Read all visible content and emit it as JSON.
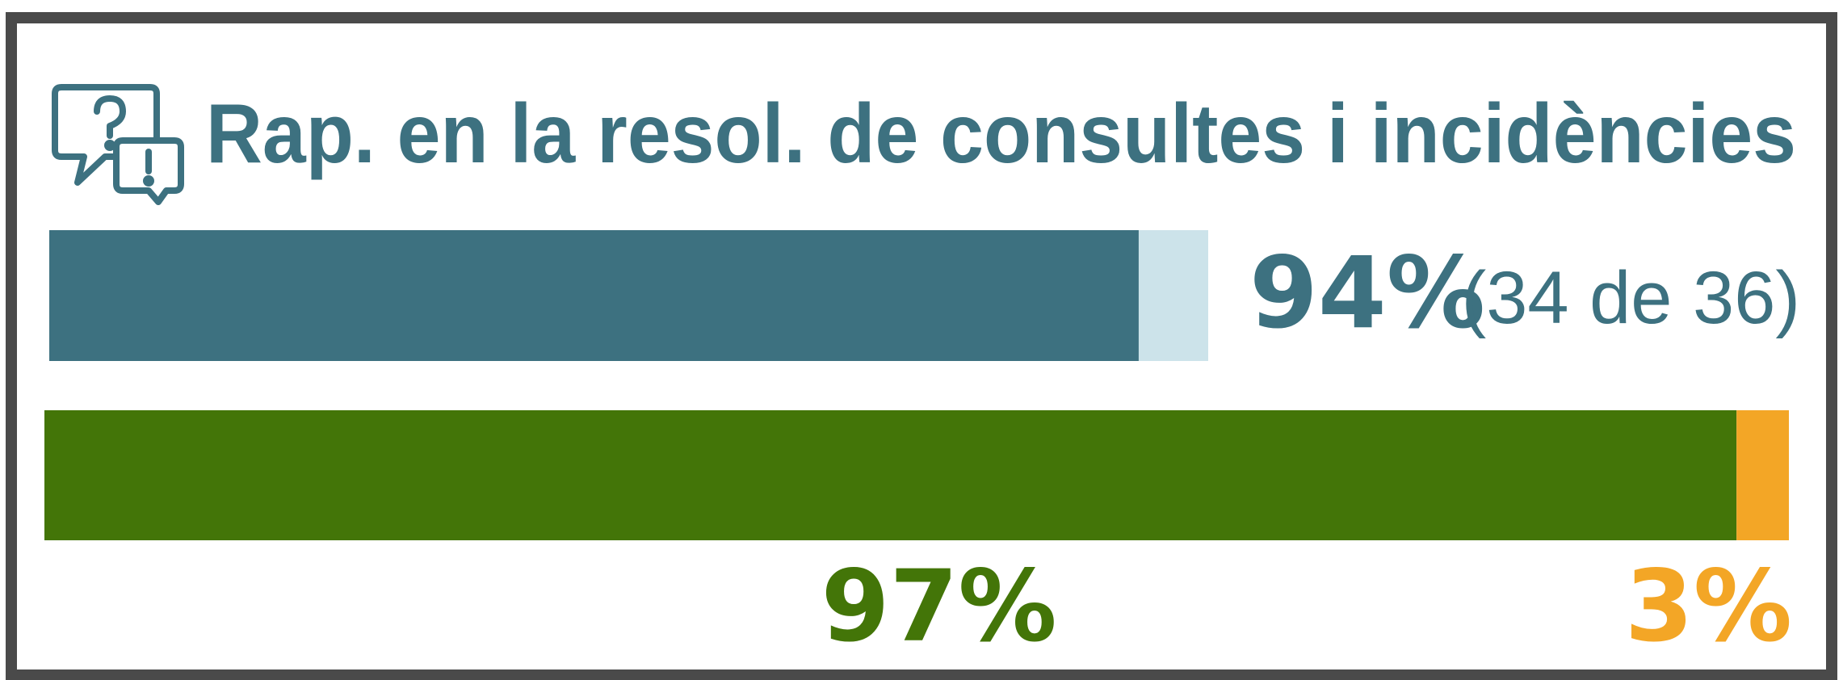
{
  "title": "Rap. en la resol. de consultes i incidències",
  "bars": [
    {
      "value": 94,
      "label": "94%",
      "detail": "(34 de 36)",
      "color": "#3d7180",
      "rest_color": "#cce3ea"
    },
    {
      "segments": [
        {
          "value": 97,
          "label": "97%",
          "color": "#437508"
        },
        {
          "value": 3,
          "label": "3%",
          "color": "#f3a626"
        }
      ]
    }
  ]
}
